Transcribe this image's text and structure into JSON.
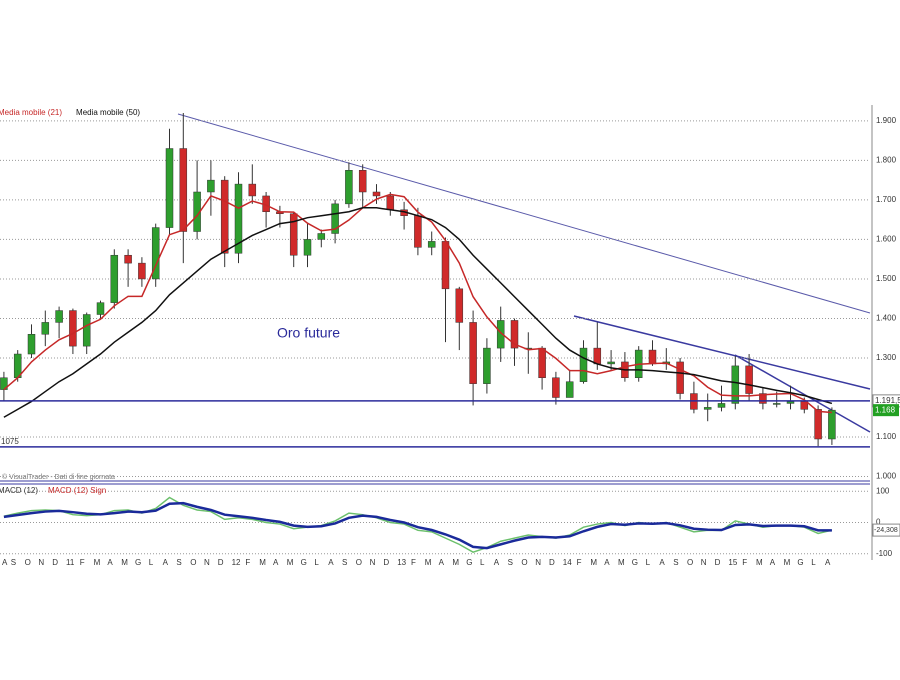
{
  "chart_data": {
    "type": "candlestick",
    "title": "Oro future",
    "source": "© VisualTrader - Dati di fine giornata",
    "categories": [
      "A",
      "S",
      "O",
      "N",
      "D",
      "11",
      "F",
      "M",
      "A",
      "M",
      "G",
      "L",
      "A",
      "S",
      "O",
      "N",
      "D",
      "12",
      "F",
      "M",
      "A",
      "M",
      "G",
      "L",
      "A",
      "S",
      "O",
      "N",
      "D",
      "13",
      "F",
      "M",
      "A",
      "M",
      "G",
      "L",
      "A",
      "S",
      "O",
      "N",
      "D",
      "14",
      "F",
      "M",
      "A",
      "M",
      "G",
      "L",
      "A",
      "S",
      "O",
      "N",
      "D",
      "15",
      "F",
      "M",
      "A",
      "M",
      "G",
      "L",
      "A"
    ],
    "candles": {
      "up_color": "#2e9e2e",
      "down_color": "#d02a2a",
      "open": [
        1220,
        1250,
        1310,
        1360,
        1390,
        1420,
        1330,
        1410,
        1440,
        1560,
        1540,
        1500,
        1630,
        1830,
        1620,
        1720,
        1750,
        1565,
        1740,
        1710,
        1670,
        1665,
        1560,
        1600,
        1615,
        1690,
        1775,
        1720,
        1710,
        1675,
        1660,
        1580,
        1595,
        1475,
        1390,
        1235,
        1325,
        1395,
        1325,
        1325,
        1250,
        1200,
        1240,
        1325,
        1285,
        1290,
        1250,
        1320,
        1285,
        1290,
        1210,
        1170,
        1175,
        1185,
        1280,
        1210,
        1185,
        1185,
        1190,
        1170,
        1095
      ],
      "high": [
        1265,
        1320,
        1385,
        1420,
        1430,
        1425,
        1415,
        1445,
        1575,
        1575,
        1555,
        1640,
        1880,
        1920,
        1800,
        1800,
        1760,
        1770,
        1790,
        1720,
        1685,
        1670,
        1640,
        1625,
        1700,
        1795,
        1790,
        1740,
        1720,
        1695,
        1680,
        1620,
        1605,
        1480,
        1420,
        1350,
        1430,
        1400,
        1365,
        1330,
        1265,
        1270,
        1345,
        1390,
        1320,
        1315,
        1330,
        1345,
        1325,
        1300,
        1240,
        1210,
        1230,
        1305,
        1310,
        1225,
        1215,
        1230,
        1200,
        1180,
        1175
      ],
      "low": [
        1190,
        1240,
        1300,
        1330,
        1350,
        1310,
        1310,
        1400,
        1425,
        1480,
        1480,
        1480,
        1610,
        1540,
        1600,
        1660,
        1530,
        1540,
        1690,
        1630,
        1630,
        1530,
        1530,
        1580,
        1590,
        1680,
        1680,
        1690,
        1660,
        1625,
        1560,
        1560,
        1340,
        1320,
        1180,
        1210,
        1290,
        1280,
        1260,
        1220,
        1182,
        1200,
        1235,
        1270,
        1270,
        1240,
        1240,
        1280,
        1270,
        1195,
        1160,
        1140,
        1165,
        1170,
        1190,
        1170,
        1175,
        1170,
        1160,
        1077,
        1080
      ],
      "close": [
        1250,
        1310,
        1360,
        1390,
        1420,
        1330,
        1410,
        1440,
        1560,
        1540,
        1500,
        1630,
        1830,
        1620,
        1720,
        1750,
        1565,
        1740,
        1710,
        1670,
        1665,
        1560,
        1600,
        1615,
        1690,
        1775,
        1720,
        1710,
        1675,
        1660,
        1580,
        1595,
        1475,
        1390,
        1235,
        1325,
        1395,
        1325,
        1325,
        1250,
        1200,
        1240,
        1325,
        1285,
        1290,
        1250,
        1320,
        1285,
        1290,
        1210,
        1170,
        1175,
        1185,
        1280,
        1210,
        1185,
        1185,
        1190,
        1170,
        1095,
        1168
      ]
    },
    "series": [
      {
        "name": "Media mobile (21)",
        "color": "#c62828",
        "values": [
          1220,
          1250,
          1290,
          1320,
          1346,
          1362,
          1382,
          1398,
          1432,
          1456,
          1456,
          1534,
          1612,
          1624,
          1660,
          1710,
          1697,
          1679,
          1697,
          1687,
          1670,
          1669,
          1641,
          1622,
          1626,
          1649,
          1680,
          1702,
          1714,
          1708,
          1669,
          1644,
          1597,
          1540,
          1455,
          1404,
          1364,
          1335,
          1321,
          1324,
          1299,
          1268,
          1268,
          1260,
          1268,
          1278,
          1284,
          1286,
          1287,
          1271,
          1255,
          1226,
          1206,
          1204,
          1204,
          1207,
          1209,
          1210,
          1194,
          1165,
          1162
        ]
      },
      {
        "name": "Media mobile (50)",
        "color": "#111111",
        "values": [
          1150,
          1170,
          1190,
          1215,
          1240,
          1260,
          1285,
          1310,
          1340,
          1365,
          1390,
          1420,
          1460,
          1490,
          1520,
          1550,
          1570,
          1590,
          1610,
          1625,
          1640,
          1645,
          1655,
          1660,
          1665,
          1670,
          1680,
          1680,
          1675,
          1670,
          1660,
          1650,
          1630,
          1600,
          1560,
          1525,
          1490,
          1455,
          1420,
          1385,
          1350,
          1320,
          1300,
          1285,
          1275,
          1270,
          1270,
          1268,
          1265,
          1262,
          1258,
          1250,
          1242,
          1238,
          1232,
          1225,
          1218,
          1212,
          1205,
          1195,
          1185
        ]
      }
    ],
    "ylim": [
      990,
      1930
    ],
    "yticks": [
      {
        "value": 1000,
        "label": "1.000"
      },
      {
        "value": 1100,
        "label": "1.100"
      },
      {
        "value": 1300,
        "label": "1.300"
      },
      {
        "value": 1400,
        "label": "1.400"
      },
      {
        "value": 1500,
        "label": "1.500"
      },
      {
        "value": 1600,
        "label": "1.600"
      },
      {
        "value": 1700,
        "label": "1.700"
      },
      {
        "value": 1800,
        "label": "1.800"
      },
      {
        "value": 1900,
        "label": "1.900"
      }
    ],
    "grid": true,
    "levels": [
      {
        "value": 1191.5,
        "label": "1.191,5",
        "side": "right"
      },
      {
        "value": 1075,
        "label": "1075",
        "side": "left"
      }
    ],
    "last_price": {
      "value": 1168,
      "label": "1.168",
      "color": "#22a022"
    },
    "macd": {
      "series": [
        {
          "name": "MACD (12)",
          "color": "#6cc06c",
          "values": [
            20,
            30,
            38,
            40,
            38,
            25,
            22,
            25,
            38,
            40,
            30,
            45,
            80,
            55,
            40,
            35,
            10,
            15,
            10,
            0,
            -5,
            -20,
            -15,
            -10,
            5,
            30,
            25,
            15,
            0,
            -5,
            -25,
            -30,
            -50,
            -70,
            -95,
            -80,
            -60,
            -50,
            -40,
            -45,
            -50,
            -40,
            -15,
            -5,
            0,
            -10,
            0,
            -5,
            0,
            -15,
            -30,
            -25,
            -25,
            5,
            -5,
            -15,
            -10,
            -10,
            -15,
            -35,
            -24.308
          ]
        },
        {
          "name": "MACD (12) Sign",
          "color": "#1a2a9a",
          "values": [
            18,
            24,
            30,
            35,
            37,
            33,
            28,
            26,
            30,
            35,
            33,
            38,
            60,
            62,
            50,
            40,
            25,
            20,
            15,
            8,
            2,
            -10,
            -14,
            -12,
            -3,
            15,
            22,
            18,
            8,
            0,
            -15,
            -24,
            -38,
            -55,
            -78,
            -82,
            -70,
            -58,
            -48,
            -46,
            -48,
            -44,
            -28,
            -14,
            -5,
            -7,
            -3,
            -4,
            -2,
            -9,
            -20,
            -23,
            -24,
            -8,
            -6,
            -11,
            -10,
            -10,
            -12,
            -25,
            -25
          ]
        }
      ],
      "ylim": [
        -120,
        120
      ],
      "yticks": [
        100,
        0,
        -100
      ],
      "last": {
        "value": -24.308,
        "label": "-24,308"
      }
    }
  }
}
